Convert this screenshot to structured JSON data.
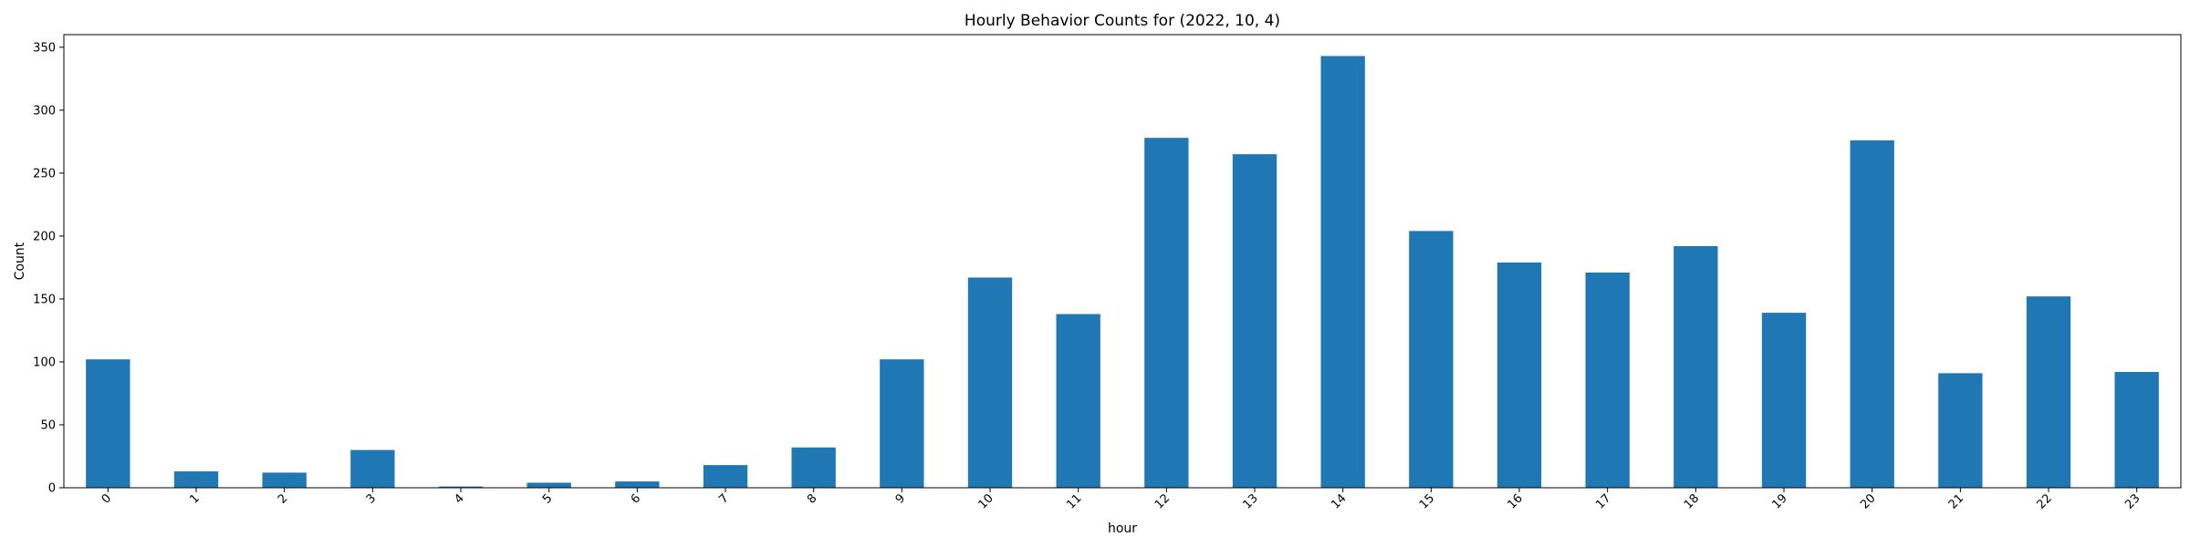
{
  "chart_data": {
    "type": "bar",
    "title": "Hourly Behavior Counts for (2022, 10, 4)",
    "xlabel": "hour",
    "ylabel": "Count",
    "categories": [
      "0",
      "1",
      "2",
      "3",
      "4",
      "5",
      "6",
      "7",
      "8",
      "9",
      "10",
      "11",
      "12",
      "13",
      "14",
      "15",
      "16",
      "17",
      "18",
      "19",
      "20",
      "21",
      "22",
      "23"
    ],
    "values": [
      102,
      13,
      12,
      30,
      1,
      4,
      5,
      18,
      32,
      102,
      167,
      138,
      278,
      265,
      343,
      204,
      179,
      171,
      192,
      139,
      276,
      91,
      152,
      92
    ],
    "ylim": [
      0,
      360
    ],
    "yticks": [
      0,
      50,
      100,
      150,
      200,
      250,
      300,
      350
    ],
    "bar_color": "#1f77b4",
    "grid": false,
    "legend": "none"
  }
}
